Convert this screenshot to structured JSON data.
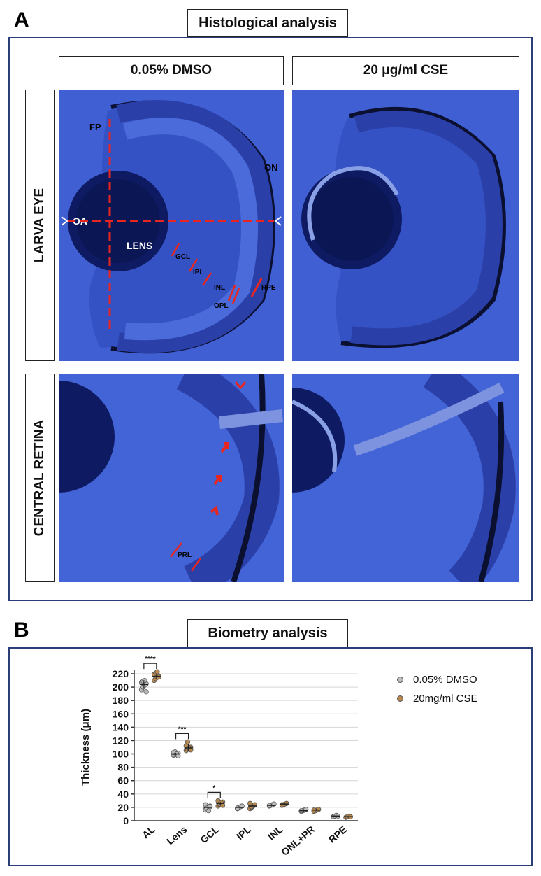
{
  "panelA": {
    "letter": "A",
    "title": "Histological analysis",
    "columns": [
      "0.05% DMSO",
      "20 μg/ml CSE"
    ],
    "rows": [
      "LARVA EYE",
      "CENTRAL RETINA"
    ],
    "eye_labels": {
      "fp": "FP",
      "on": "ON",
      "oa": "OA",
      "lens": "LENS",
      "gcl": "GCL",
      "ipl": "IPL",
      "inl": "INL",
      "opl": "OPL",
      "rpe": "RPE"
    },
    "retina_labels": {
      "prl": "PRL"
    }
  },
  "panelB": {
    "letter": "B",
    "title": "Biometry analysis"
  },
  "colors": {
    "dmso": "#bdbdbd",
    "cse": "#b8894e",
    "marker": "#e8251f",
    "tissue": "#3a55c9",
    "frame": "#2c3e78"
  },
  "chart_data": {
    "type": "scatter",
    "categories": [
      "AL",
      "Lens",
      "GCL",
      "IPL",
      "INL",
      "ONL+PR",
      "RPE"
    ],
    "ylabel": "Thickness (μm)",
    "xlabel": "",
    "ylim": [
      0,
      220
    ],
    "yticks": [
      0,
      20,
      40,
      60,
      80,
      100,
      120,
      140,
      160,
      180,
      200,
      220
    ],
    "grid": true,
    "legend_position": "top-right",
    "series": [
      {
        "name": "0.05% DMSO",
        "points": [
          [
            196,
            200,
            203,
            205,
            207,
            209,
            210,
            193
          ],
          [
            98,
            99,
            100,
            101,
            102,
            103,
            100,
            97
          ],
          [
            16,
            18,
            20,
            22,
            24,
            19,
            15,
            21
          ],
          [
            18,
            20,
            21,
            22,
            19
          ],
          [
            22,
            23,
            24,
            25,
            23
          ],
          [
            14,
            15,
            16,
            17,
            15
          ],
          [
            6,
            7,
            8,
            7
          ]
        ],
        "means": [
          204,
          100,
          20,
          20,
          23,
          15,
          7
        ]
      },
      {
        "name": "20mg/ml CSE",
        "points": [
          [
            210,
            213,
            215,
            217,
            219,
            221,
            223,
            215
          ],
          [
            105,
            107,
            108,
            110,
            112,
            118,
            109,
            106
          ],
          [
            22,
            24,
            26,
            28,
            30,
            25,
            27,
            23
          ],
          [
            18,
            20,
            22,
            24,
            26,
            21
          ],
          [
            23,
            24,
            25,
            26,
            24
          ],
          [
            14,
            15,
            16,
            17,
            16
          ],
          [
            5,
            6,
            7,
            6
          ]
        ],
        "means": [
          216,
          109,
          26,
          22,
          25,
          16,
          6
        ]
      }
    ],
    "significance": [
      {
        "category": "AL",
        "label": "****"
      },
      {
        "category": "Lens",
        "label": "***"
      },
      {
        "category": "GCL",
        "label": "*"
      }
    ]
  }
}
